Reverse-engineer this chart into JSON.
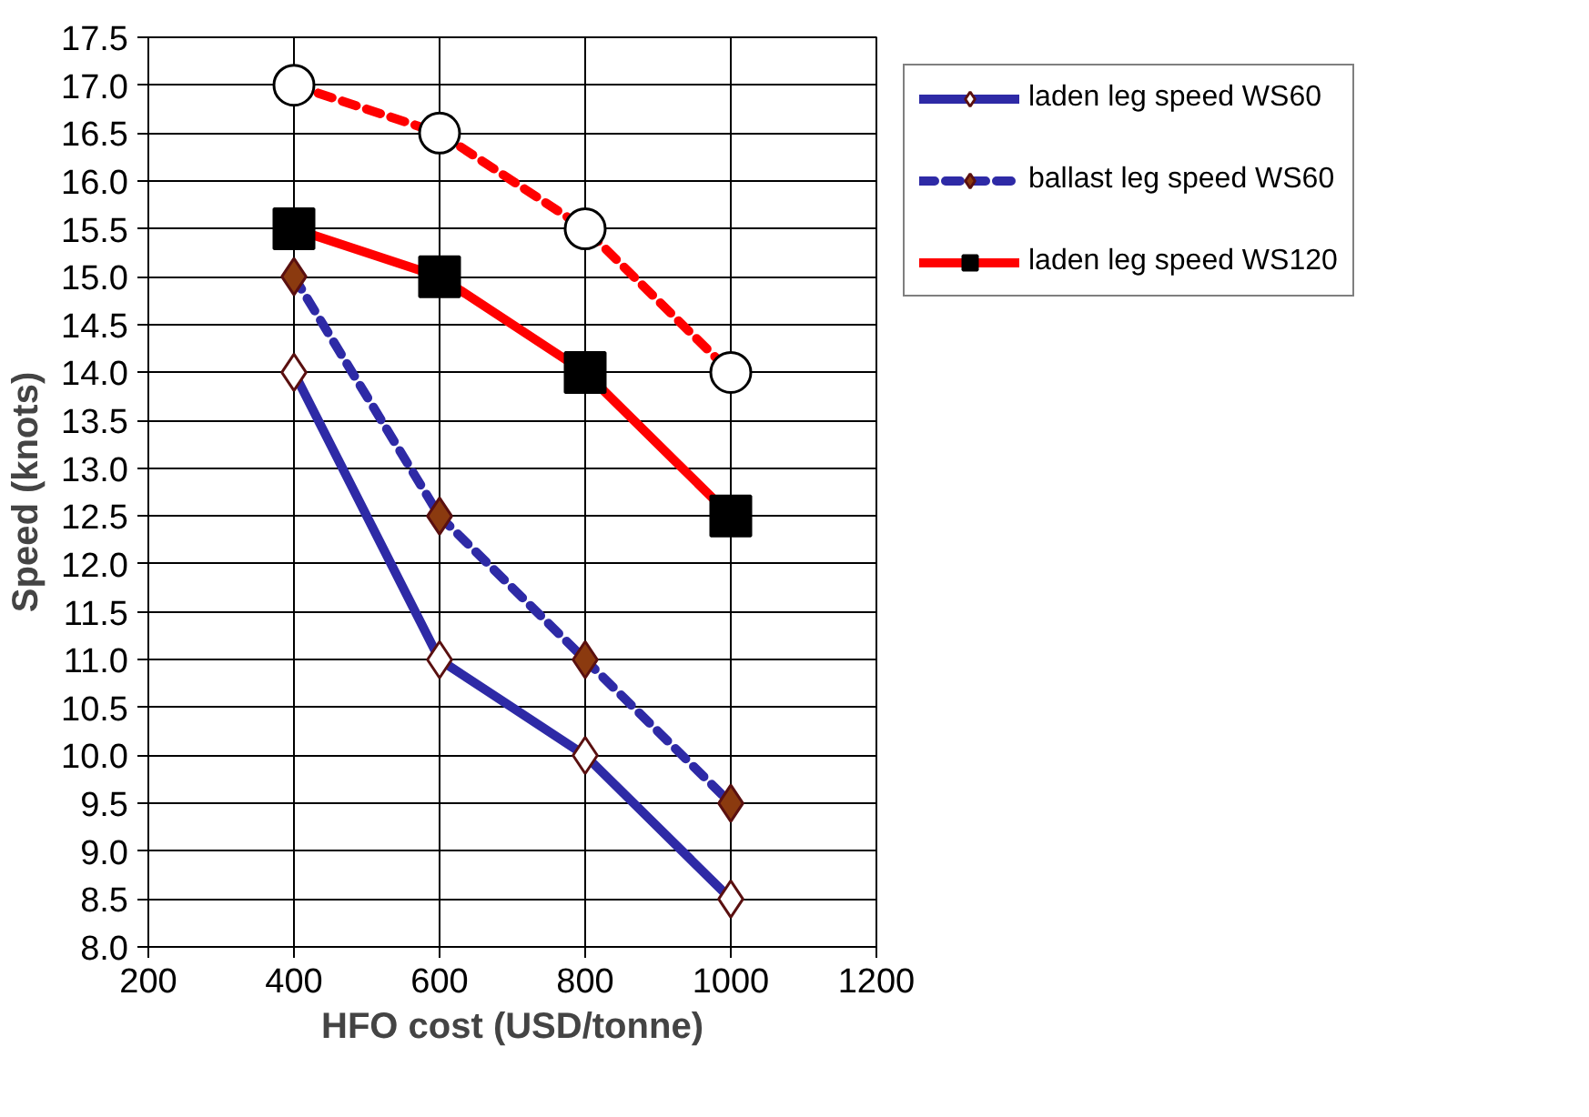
{
  "chart_data": {
    "type": "line",
    "xlabel": "HFO cost (USD/tonne)",
    "ylabel": "Speed (knots)",
    "x": [
      400,
      600,
      800,
      1000
    ],
    "xlim": [
      200,
      1200
    ],
    "xticks": [
      200,
      400,
      600,
      800,
      1000,
      1200
    ],
    "ylim": [
      8,
      17.5
    ],
    "yticks": [
      {
        "value": 8,
        "label": "8.0"
      },
      8.5,
      {
        "value": 9,
        "label": "9.0"
      },
      9.5,
      {
        "value": 10,
        "label": "10.0"
      },
      10.5,
      {
        "value": 11,
        "label": "11.0"
      },
      11.5,
      {
        "value": 12,
        "label": "12.0"
      },
      12.5,
      {
        "value": 13,
        "label": "13.0"
      },
      13.5,
      {
        "value": 14,
        "label": "14.0"
      },
      14.5,
      {
        "value": 15,
        "label": "15.0"
      },
      15.5,
      {
        "value": 16,
        "label": "16.0"
      },
      16.5,
      {
        "value": 17,
        "label": "17.0"
      },
      17.5
    ],
    "grid": true,
    "legend": "right",
    "series": [
      {
        "name": "laden leg speed WS60",
        "color": "#2e2aa6",
        "colors": [
          "#ffffff",
          "#ffffff",
          "#ffffff",
          "#ffffff"
        ],
        "marker": "diamond",
        "line_style": "solid",
        "values": [
          14,
          11,
          10,
          8.5
        ]
      },
      {
        "name": "ballast leg speed WS60",
        "color": "#2e2aa6",
        "colors": [
          "#8b3a0f",
          "#8b3a0f",
          "#8b3a0f",
          "#8b3a0f"
        ],
        "marker": "diamond",
        "line_style": "dashed",
        "values": [
          15,
          12.5,
          11,
          9.5
        ]
      },
      {
        "name": "laden leg speed WS120",
        "color": "#ff0000",
        "colors": [
          "#000000",
          "#000000",
          "#000000",
          "#000000"
        ],
        "marker": "square",
        "line_style": "solid",
        "values": [
          15.5,
          15,
          14,
          12.5
        ]
      },
      {
        "color": "#ff0000",
        "colors": [
          "#ffffff",
          "#ffffff",
          "#ffffff",
          "#ffffff"
        ],
        "marker": "circle",
        "line_style": "dashed",
        "values": [
          17,
          16.5,
          15.5,
          14
        ]
      }
    ]
  }
}
